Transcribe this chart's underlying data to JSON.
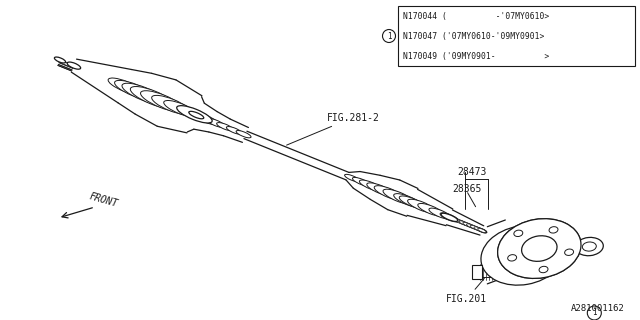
{
  "bg_color": "#ffffff",
  "line_color": "#1a1a1a",
  "fig_width": 6.4,
  "fig_height": 3.2,
  "dpi": 100,
  "table_rows": [
    "N170044 (          -'07MY0610>",
    "N170047 ('07MY0610-'09MY0901>",
    "N170049 ('09MY0901-          >"
  ],
  "label_fig281": "FIG.281-2",
  "label_fig201": "FIG.201",
  "label_28473": "28473",
  "label_28365": "28365",
  "label_front": "FRONT",
  "footer": "A281001162"
}
